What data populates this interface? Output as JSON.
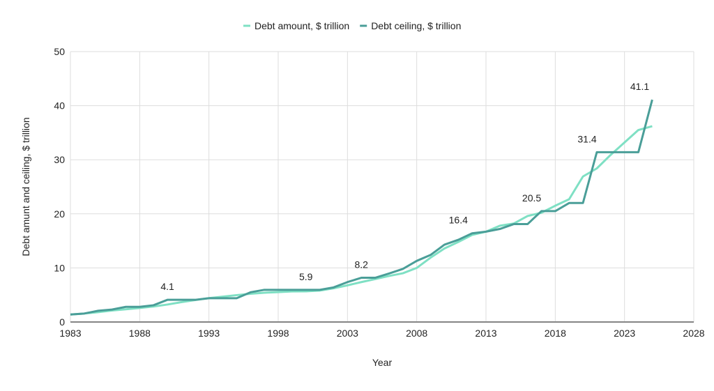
{
  "chart_data": {
    "type": "line",
    "xlabel": "Year",
    "ylabel": "Debt amunt and ceiling, $ trillion",
    "xlim": [
      1983,
      2028
    ],
    "ylim": [
      0,
      50
    ],
    "x_ticks": [
      1983,
      1988,
      1993,
      1998,
      2003,
      2008,
      2013,
      2018,
      2023,
      2028
    ],
    "y_ticks": [
      0,
      10,
      20,
      30,
      40,
      50
    ],
    "grid": true,
    "legend_position": "top",
    "x": [
      1983,
      1984,
      1985,
      1986,
      1987,
      1988,
      1989,
      1990,
      1991,
      1992,
      1993,
      1994,
      1995,
      1996,
      1997,
      1998,
      1999,
      2000,
      2001,
      2002,
      2003,
      2004,
      2005,
      2006,
      2007,
      2008,
      2009,
      2010,
      2011,
      2012,
      2013,
      2014,
      2015,
      2016,
      2017,
      2018,
      2019,
      2020,
      2021,
      2022,
      2023,
      2024,
      2025
    ],
    "series": [
      {
        "name": "Debt amount, $ trillion",
        "color": "#7fe0c4",
        "values": [
          1.38,
          1.57,
          1.82,
          2.13,
          2.35,
          2.6,
          2.86,
          3.23,
          3.67,
          4.06,
          4.41,
          4.69,
          4.97,
          5.22,
          5.41,
          5.53,
          5.66,
          5.67,
          5.81,
          6.23,
          6.78,
          7.38,
          7.93,
          8.51,
          9.01,
          10.0,
          11.9,
          13.6,
          14.8,
          16.1,
          16.7,
          17.8,
          18.2,
          19.6,
          20.2,
          21.5,
          22.7,
          26.9,
          28.4,
          30.9,
          33.2,
          35.5,
          36.2
        ]
      },
      {
        "name": "Debt ceiling, $ trillion",
        "color": "#4a9e98",
        "values": [
          1.39,
          1.57,
          2.08,
          2.3,
          2.8,
          2.8,
          3.1,
          4.1,
          4.1,
          4.1,
          4.4,
          4.4,
          4.4,
          5.5,
          5.95,
          5.95,
          5.95,
          5.95,
          5.95,
          6.4,
          7.38,
          8.18,
          8.18,
          8.97,
          9.82,
          11.3,
          12.4,
          14.3,
          15.2,
          16.4,
          16.7,
          17.2,
          18.1,
          18.1,
          20.5,
          20.5,
          22.0,
          22.0,
          31.4,
          31.4,
          31.4,
          31.4,
          41.1
        ]
      }
    ],
    "data_labels": [
      {
        "x": 1990,
        "value": 4.1,
        "text": "4.1"
      },
      {
        "x": 2000,
        "value": 5.9,
        "text": "5.9"
      },
      {
        "x": 2004,
        "value": 8.2,
        "text": "8.2"
      },
      {
        "x": 2011,
        "value": 16.4,
        "text": "16.4"
      },
      {
        "x": 2016.3,
        "value": 20.5,
        "text": "20.5"
      },
      {
        "x": 2020.3,
        "value": 31.4,
        "text": "31.4"
      },
      {
        "x": 2024.1,
        "value": 41.1,
        "text": "41.1"
      }
    ]
  }
}
